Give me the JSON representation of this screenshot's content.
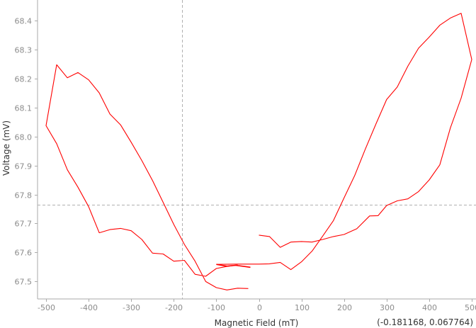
{
  "chart_data": {
    "type": "line",
    "title": "",
    "xlabel": "Magnetic Field (mT)",
    "ylabel": "Voltage (mV)",
    "xlim": [
      -520,
      510
    ],
    "ylim": [
      67.44,
      68.47
    ],
    "x_ticks": [
      -500,
      -400,
      -300,
      -200,
      -100,
      0,
      100,
      200,
      300,
      400,
      500
    ],
    "y_ticks": [
      67.5,
      67.6,
      67.7,
      67.8,
      67.9,
      68.0,
      68.1,
      68.2,
      68.3,
      68.4
    ],
    "grid": false,
    "line_color": "#ff0000",
    "crosshair": {
      "x": -181.168,
      "y": 67.764,
      "color": "#b0b0b0"
    },
    "coordinate_readout": "(-0.181168, 0.067764)",
    "series": [
      {
        "values": [
          [
            -100,
            67.559
          ],
          [
            -75,
            67.553
          ],
          [
            -55,
            67.556
          ],
          [
            -35,
            67.552
          ],
          [
            -20,
            67.549
          ]
        ]
      },
      {
        "values": [
          [
            -100,
            67.559
          ],
          [
            -50,
            67.56
          ],
          [
            0,
            67.56
          ],
          [
            25,
            67.561
          ],
          [
            50,
            67.566
          ],
          [
            75,
            67.541
          ],
          [
            100,
            67.568
          ],
          [
            125,
            67.605
          ],
          [
            150,
            67.657
          ],
          [
            175,
            67.71
          ],
          [
            200,
            67.788
          ],
          [
            225,
            67.865
          ],
          [
            250,
            67.956
          ],
          [
            275,
            68.043
          ],
          [
            300,
            68.127
          ],
          [
            325,
            68.17
          ],
          [
            350,
            68.242
          ],
          [
            375,
            68.304
          ],
          [
            400,
            68.342
          ],
          [
            425,
            68.383
          ],
          [
            450,
            68.408
          ],
          [
            475,
            68.424
          ],
          [
            500,
            68.265
          ],
          [
            475,
            68.132
          ],
          [
            450,
            68.03
          ],
          [
            425,
            67.902
          ],
          [
            400,
            67.85
          ],
          [
            375,
            67.81
          ],
          [
            350,
            67.785
          ],
          [
            325,
            67.778
          ],
          [
            300,
            67.762
          ],
          [
            280,
            67.727
          ],
          [
            260,
            67.726
          ],
          [
            230,
            67.682
          ],
          [
            200,
            67.662
          ],
          [
            175,
            67.655
          ],
          [
            150,
            67.645
          ],
          [
            125,
            67.636
          ],
          [
            100,
            67.638
          ],
          [
            75,
            67.636
          ],
          [
            50,
            67.618
          ],
          [
            25,
            67.655
          ],
          [
            0,
            67.66
          ]
        ]
      },
      {
        "values": [
          [
            -25,
            67.476
          ],
          [
            -50,
            67.477
          ],
          [
            -75,
            67.471
          ],
          [
            -100,
            67.479
          ],
          [
            -125,
            67.5
          ],
          [
            -150,
            67.57
          ],
          [
            -175,
            67.628
          ],
          [
            -200,
            67.697
          ],
          [
            -225,
            67.773
          ],
          [
            -250,
            67.848
          ],
          [
            -275,
            67.917
          ],
          [
            -300,
            67.98
          ],
          [
            -325,
            68.04
          ],
          [
            -350,
            68.077
          ],
          [
            -375,
            68.15
          ],
          [
            -400,
            68.195
          ],
          [
            -425,
            68.22
          ],
          [
            -450,
            68.202
          ],
          [
            -475,
            68.247
          ],
          [
            -500,
            68.037
          ],
          [
            -475,
            67.975
          ],
          [
            -450,
            67.885
          ],
          [
            -425,
            67.825
          ],
          [
            -400,
            67.758
          ],
          [
            -375,
            67.668
          ],
          [
            -350,
            67.679
          ],
          [
            -325,
            67.683
          ],
          [
            -300,
            67.675
          ],
          [
            -275,
            67.645
          ],
          [
            -250,
            67.598
          ],
          [
            -225,
            67.595
          ],
          [
            -200,
            67.57
          ],
          [
            -175,
            67.573
          ],
          [
            -150,
            67.525
          ],
          [
            -125,
            67.518
          ],
          [
            -100,
            67.545
          ],
          [
            -75,
            67.552
          ],
          [
            -50,
            67.557
          ]
        ]
      }
    ]
  }
}
